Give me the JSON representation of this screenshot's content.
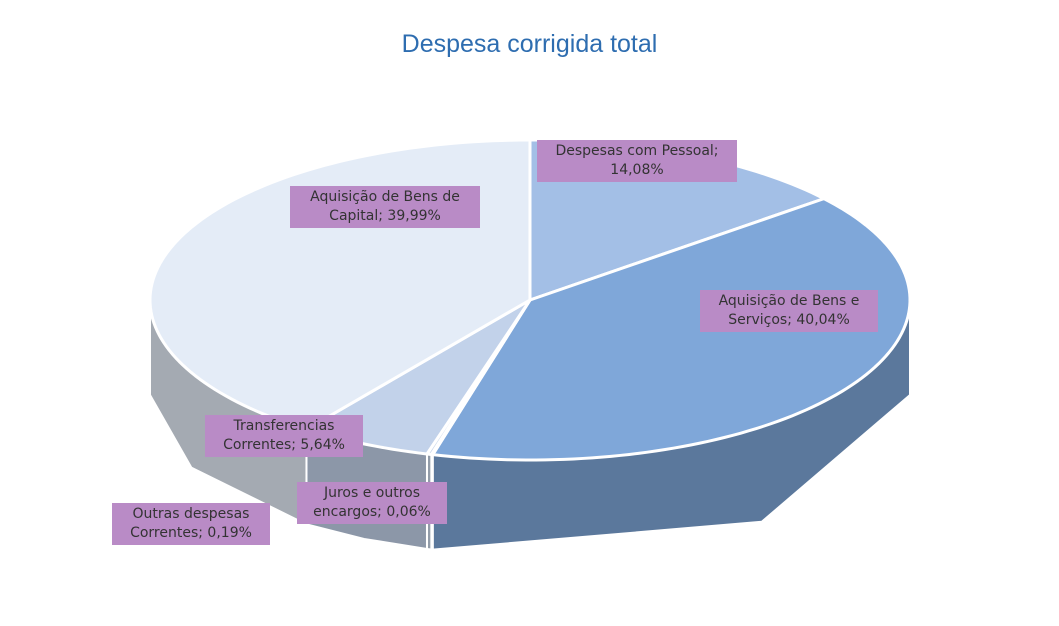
{
  "chart_data": {
    "type": "pie3d",
    "title": "Despesa corrigida total",
    "values": [
      14.08,
      40.04,
      0.06,
      0.19,
      5.64,
      39.99
    ],
    "value_labels": [
      "Despesas com Pessoal; 14,08%",
      "Aquisição de Bens e Serviços; 40,04%",
      "Juros e outros encargos; 0,06%",
      "Outras despesas Correntes; 0,19%",
      "Transferencias Correntes; 5,64%",
      "Aquisição de Bens de Capital; 39,99%"
    ],
    "colors": [
      "#a3bfe6",
      "#7fa7d9",
      "#b7c9e4",
      "#cbd8eb",
      "#c2d2ea",
      "#e4ecf7"
    ]
  }
}
